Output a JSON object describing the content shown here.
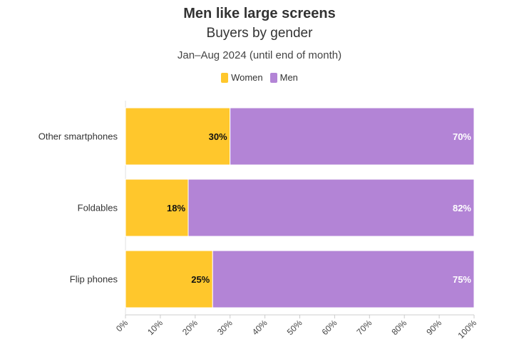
{
  "chart_data": {
    "type": "bar",
    "orientation": "horizontal",
    "stacked": true,
    "title": "Men like large screens",
    "subtitle": "Buyers by gender",
    "caption": "Jan–Aug 2024 (until end of month)",
    "categories": [
      "Other smartphones",
      "Foldables",
      "Flip phones"
    ],
    "series": [
      {
        "name": "Women",
        "color": "#ffc72c",
        "values": [
          30,
          18,
          25
        ],
        "labels": [
          "30%",
          "18%",
          "25%"
        ]
      },
      {
        "name": "Men",
        "color": "#b384d6",
        "values": [
          70,
          82,
          75
        ],
        "labels": [
          "70%",
          "82%",
          "75%"
        ]
      }
    ],
    "xlim": [
      0,
      100
    ],
    "x_ticks": [
      "0%",
      "10%",
      "20%",
      "30%",
      "40%",
      "50%",
      "60%",
      "70%",
      "80%",
      "90%",
      "100%"
    ],
    "legend_position": "top-center",
    "grid": false
  }
}
